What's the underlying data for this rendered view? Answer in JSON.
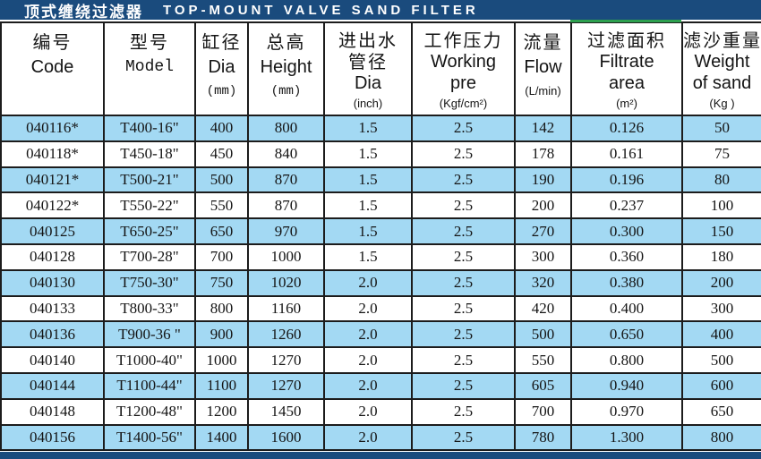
{
  "title": {
    "cn": "顶式缠绕过滤器",
    "en": "TOP-MOUNT VALVE SAND FILTER"
  },
  "colors": {
    "navy": "#1a4b7d",
    "stripe": "#a3d9f3",
    "green": "#2da04e",
    "border": "#1c1c1c",
    "ink": "#141414"
  },
  "table": {
    "columns": [
      {
        "cn": "编号",
        "en": "Code"
      },
      {
        "cn": "型号",
        "en": "Model"
      },
      {
        "cn": "缸径",
        "en": "Dia",
        "unit": "(mm)"
      },
      {
        "cn": "总高",
        "en": "Height",
        "unit": "(mm)"
      },
      {
        "cn": "进出水",
        "cn2": "管径",
        "en": "Dia",
        "unit": "(inch)"
      },
      {
        "cn": "工作压力",
        "en": "Working",
        "en2": "pre",
        "unit": "(Kgf/cm²)"
      },
      {
        "cn": "流量",
        "en": "Flow",
        "unit": "(L/min)"
      },
      {
        "cn": "过滤面积",
        "en": "Filtrate",
        "en2": "area",
        "unit": "(m²)"
      },
      {
        "cn": "滤沙重量",
        "en": "Weight",
        "en2": "of sand",
        "unit": "(Kg )"
      }
    ],
    "rows": [
      [
        "040116*",
        "T400-16\"",
        "400",
        "800",
        "1.5",
        "2.5",
        "142",
        "0.126",
        "50"
      ],
      [
        "040118*",
        "T450-18\"",
        "450",
        "840",
        "1.5",
        "2.5",
        "178",
        "0.161",
        "75"
      ],
      [
        "040121*",
        "T500-21\"",
        "500",
        "870",
        "1.5",
        "2.5",
        "190",
        "0.196",
        "80"
      ],
      [
        "040122*",
        "T550-22\"",
        "550",
        "870",
        "1.5",
        "2.5",
        "200",
        "0.237",
        "100"
      ],
      [
        "040125",
        "T650-25\"",
        "650",
        "970",
        "1.5",
        "2.5",
        "270",
        "0.300",
        "150"
      ],
      [
        "040128",
        "T700-28\"",
        "700",
        "1000",
        "1.5",
        "2.5",
        "300",
        "0.360",
        "180"
      ],
      [
        "040130",
        "T750-30\"",
        "750",
        "1020",
        "2.0",
        "2.5",
        "320",
        "0.380",
        "200"
      ],
      [
        "040133",
        "T800-33\"",
        "800",
        "1160",
        "2.0",
        "2.5",
        "420",
        "0.400",
        "300"
      ],
      [
        "040136",
        "T900-36 \"",
        "900",
        "1260",
        "2.0",
        "2.5",
        "500",
        "0.650",
        "400"
      ],
      [
        "040140",
        "T1000-40\"",
        "1000",
        "1270",
        "2.0",
        "2.5",
        "550",
        "0.800",
        "500"
      ],
      [
        "040144",
        "T1100-44\"",
        "1100",
        "1270",
        "2.0",
        "2.5",
        "605",
        "0.940",
        "600"
      ],
      [
        "040148",
        "T1200-48\"",
        "1200",
        "1450",
        "2.0",
        "2.5",
        "700",
        "0.970",
        "650"
      ],
      [
        "040156",
        "T1400-56\"",
        "1400",
        "1600",
        "2.0",
        "2.5",
        "780",
        "1.300",
        "800"
      ]
    ]
  }
}
